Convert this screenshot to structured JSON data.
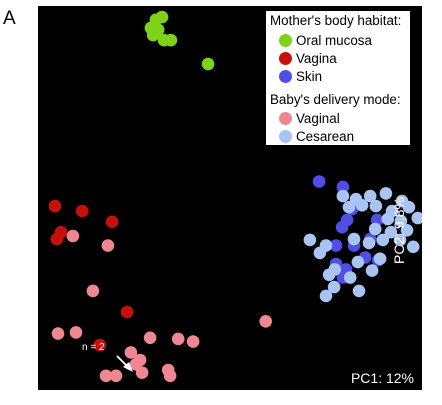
{
  "panel_label": "A",
  "legend": {
    "habitat_title": "Mother's body habitat:",
    "habitat_items": [
      {
        "label": "Oral mucosa",
        "color": "#7fd21a"
      },
      {
        "label": "Vagina",
        "color": "#c4120a"
      },
      {
        "label": "Skin",
        "color": "#4f4fe6"
      }
    ],
    "delivery_title": "Baby's delivery mode:",
    "delivery_items": [
      {
        "label": "Vaginal",
        "color": "#ef8792"
      },
      {
        "label": "Cesarean",
        "color": "#a9c3f2"
      }
    ]
  },
  "annotation": "n = 2",
  "chart_data": {
    "type": "scatter",
    "xlabel": "PC1: 12%",
    "ylabel": "PC2: 9.8%",
    "xlim": [
      0,
      100
    ],
    "ylim": [
      0,
      100
    ],
    "grid": false,
    "legend_position": "top-right",
    "series": [
      {
        "name": "Oral mucosa",
        "color": "#7fd21a",
        "x": [
          30.7,
          32.3,
          29.4,
          31.3,
          30.0,
          32.8,
          34.6,
          44.3
        ],
        "y": [
          96.4,
          97.1,
          94.3,
          93.8,
          92.4,
          91.1,
          91.1,
          84.9
        ]
      },
      {
        "name": "Vagina",
        "color": "#c4120a",
        "x": [
          4.4,
          11.5,
          19.3,
          6.0,
          4.9,
          23.2,
          16.1
        ],
        "y": [
          47.9,
          46.6,
          43.8,
          41.1,
          39.3,
          20.3,
          11.7
        ]
      },
      {
        "name": "Skin",
        "color": "#4f4fe6",
        "x": [
          73.2,
          79.4,
          81.8,
          80.5,
          79.2,
          77.6,
          82.3,
          88.3,
          86.5,
          85.2,
          88.6,
          77.6,
          80.2,
          79.4
        ],
        "y": [
          54.3,
          52.9,
          47.1,
          44.3,
          42.4,
          37.6,
          37.6,
          44.3,
          39.3,
          34.5,
          33.8,
          32.8,
          31.4,
          29.3
        ]
      },
      {
        "name": "Vaginal",
        "color": "#ef8792",
        "x": [
          9.1,
          18.2,
          14.3,
          5.2,
          9.9,
          29.2,
          36.5,
          40.4,
          59.3,
          24.2,
          26.6,
          25.5,
          27.1,
          17.7,
          20.3,
          33.9,
          34.4
        ],
        "y": [
          40.1,
          37.6,
          25.8,
          14.7,
          15.0,
          13.6,
          13.3,
          12.6,
          17.9,
          9.8,
          7.8,
          6.7,
          4.5,
          3.7,
          3.7,
          5.2,
          3.7
        ]
      },
      {
        "name": "Cesarean",
        "color": "#a9c3f2",
        "x": [
          79.4,
          82.8,
          86.5,
          90.6,
          94.8,
          81.0,
          84.4,
          88.0,
          92.2,
          96.6,
          98.9,
          91.1,
          94.5,
          87.8,
          91.9,
          96.1,
          70.8,
          75.0,
          82.3,
          86.2,
          89.8,
          94.3,
          97.7,
          73.4,
          77.3,
          83.3,
          89.1,
          75.8,
          81.3,
          87.0,
          77.1,
          83.6,
          75.0
        ],
        "y": [
          50.5,
          49.7,
          50.5,
          51.2,
          49.2,
          47.6,
          48.1,
          47.9,
          46.6,
          47.6,
          44.8,
          44.5,
          44.0,
          41.9,
          41.1,
          41.6,
          39.1,
          37.6,
          39.3,
          38.3,
          39.1,
          39.1,
          37.3,
          35.7,
          31.4,
          33.3,
          34.2,
          30.0,
          29.3,
          31.1,
          26.8,
          25.8,
          24.5
        ]
      }
    ]
  }
}
